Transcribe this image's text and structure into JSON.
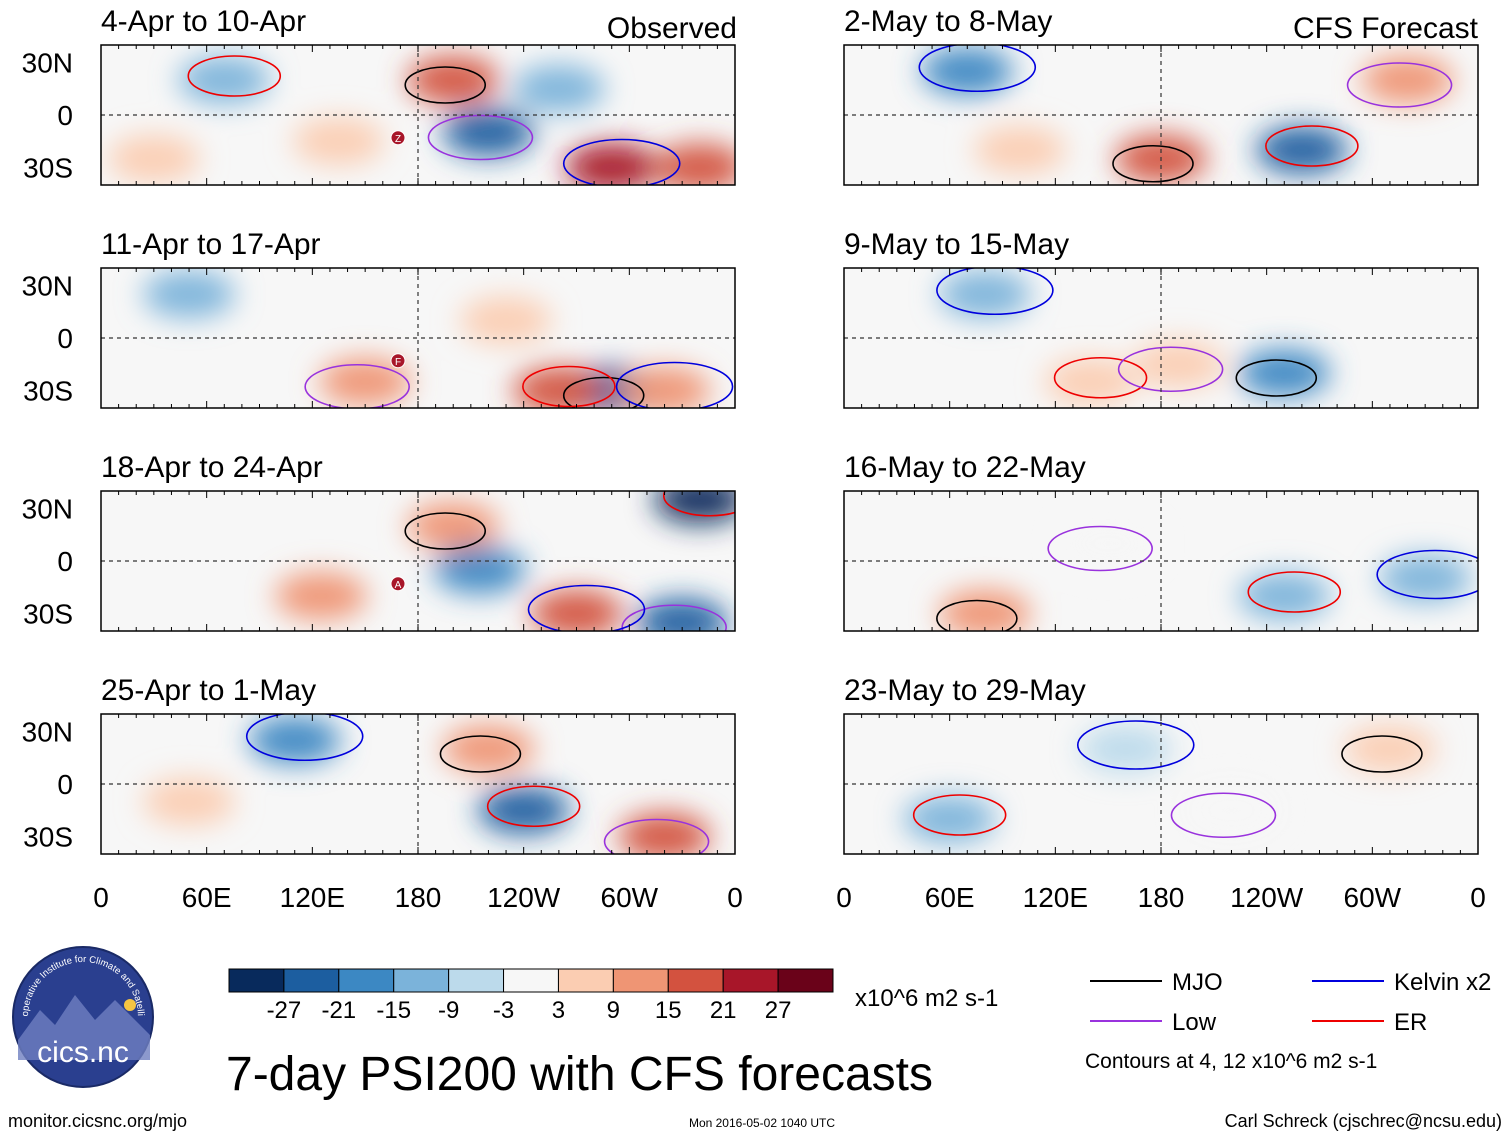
{
  "chart_data": {
    "type": "heatmap",
    "title": "7-day PSI200 with CFS forecasts",
    "field": "PSI200 anomaly",
    "units": "x10^6 m2 s-1",
    "columns": {
      "observed_label": "Observed",
      "forecast_label": "CFS Forecast"
    },
    "x_ticks": [
      "0",
      "60E",
      "120E",
      "180",
      "120W",
      "60W",
      "0"
    ],
    "y_ticks": [
      "30N",
      "0",
      "30S"
    ],
    "colorbar": {
      "labels": [
        "-27",
        "-21",
        "-15",
        "-9",
        "-3",
        "3",
        "9",
        "15",
        "21",
        "27"
      ],
      "colors": [
        "#082a5c",
        "#1c5ea0",
        "#3c88c3",
        "#7bb3da",
        "#bcdaeb",
        "#f7f7f7",
        "#fbcdb2",
        "#ef9574",
        "#d3523f",
        "#a81629",
        "#6a0219"
      ]
    },
    "legend": {
      "entries": [
        {
          "label": "MJO",
          "color": "#000000"
        },
        {
          "label": "Kelvin x2",
          "color": "#0000dd"
        },
        {
          "label": "Low",
          "color": "#9932dd"
        },
        {
          "label": "ER",
          "color": "#ee0000"
        }
      ],
      "note": "Contours at 4, 12 x10^6 m2 s-1"
    },
    "panels": [
      {
        "period": "4-Apr to 10-Apr",
        "column": "Observed",
        "cells": [
          {
            "lon": 200,
            "lat": 20,
            "value": 21
          },
          {
            "lon": 70,
            "lat": 20,
            "value": -9
          },
          {
            "lon": 220,
            "lat": -10,
            "value": -21
          },
          {
            "lon": 290,
            "lat": -30,
            "value": 27
          },
          {
            "lon": 340,
            "lat": -30,
            "value": 21
          },
          {
            "lon": 135,
            "lat": -15,
            "value": 9
          },
          {
            "lon": 260,
            "lat": 15,
            "value": -9
          },
          {
            "lon": 30,
            "lat": -25,
            "value": 9
          }
        ],
        "storm_markers": [
          "Z"
        ]
      },
      {
        "period": "11-Apr to 17-Apr",
        "column": "Observed",
        "cells": [
          {
            "lon": 290,
            "lat": -30,
            "value": -21
          },
          {
            "lon": 260,
            "lat": -30,
            "value": 21
          },
          {
            "lon": 150,
            "lat": -25,
            "value": 15
          },
          {
            "lon": 320,
            "lat": -30,
            "value": 15
          },
          {
            "lon": 230,
            "lat": 10,
            "value": 9
          },
          {
            "lon": 50,
            "lat": 25,
            "value": -9
          }
        ],
        "storm_markers": [
          "F"
        ]
      },
      {
        "period": "18-Apr to 24-Apr",
        "column": "Observed",
        "cells": [
          {
            "lon": 200,
            "lat": 20,
            "value": 15
          },
          {
            "lon": 340,
            "lat": 35,
            "value": -27
          },
          {
            "lon": 330,
            "lat": -35,
            "value": -21
          },
          {
            "lon": 270,
            "lat": -30,
            "value": 21
          },
          {
            "lon": 125,
            "lat": -20,
            "value": 15
          },
          {
            "lon": 215,
            "lat": -5,
            "value": -15
          }
        ],
        "storm_markers": [
          "A"
        ]
      },
      {
        "period": "25-Apr to 1-May",
        "column": "Observed",
        "cells": [
          {
            "lon": 220,
            "lat": 20,
            "value": 15
          },
          {
            "lon": 240,
            "lat": -15,
            "value": -21
          },
          {
            "lon": 320,
            "lat": -30,
            "value": 21
          },
          {
            "lon": 110,
            "lat": 25,
            "value": -15
          },
          {
            "lon": 50,
            "lat": -10,
            "value": 9
          }
        ],
        "storm_markers": []
      },
      {
        "period": "2-May to 8-May",
        "column": "CFS Forecast",
        "cells": [
          {
            "lon": 180,
            "lat": -25,
            "value": 21
          },
          {
            "lon": 260,
            "lat": -20,
            "value": -21
          },
          {
            "lon": 320,
            "lat": 20,
            "value": 15
          },
          {
            "lon": 70,
            "lat": 25,
            "value": -15
          },
          {
            "lon": 100,
            "lat": -20,
            "value": 9
          }
        ],
        "storm_markers": []
      },
      {
        "period": "9-May to 15-May",
        "column": "CFS Forecast",
        "cells": [
          {
            "lon": 250,
            "lat": -20,
            "value": -15
          },
          {
            "lon": 140,
            "lat": -25,
            "value": 9
          },
          {
            "lon": 190,
            "lat": -15,
            "value": 9
          },
          {
            "lon": 80,
            "lat": 25,
            "value": -9
          }
        ],
        "storm_markers": []
      },
      {
        "period": "16-May to 22-May",
        "column": "CFS Forecast",
        "cells": [
          {
            "lon": 80,
            "lat": -30,
            "value": 15
          },
          {
            "lon": 250,
            "lat": -20,
            "value": -9
          },
          {
            "lon": 150,
            "lat": 10,
            "value": 3
          },
          {
            "lon": 330,
            "lat": -10,
            "value": -9
          }
        ],
        "storm_markers": []
      },
      {
        "period": "23-May to 29-May",
        "column": "CFS Forecast",
        "cells": [
          {
            "lon": 310,
            "lat": 20,
            "value": 9
          },
          {
            "lon": 60,
            "lat": -20,
            "value": -9
          },
          {
            "lon": 220,
            "lat": -15,
            "value": 3
          },
          {
            "lon": 160,
            "lat": 20,
            "value": -3
          }
        ],
        "storm_markers": []
      }
    ]
  },
  "logo": {
    "text": "cics.nc",
    "arc_text": "Cooperative Institute for Climate and Satellites"
  },
  "footer": {
    "url": "monitor.cicsnc.org/mjo",
    "timestamp": "Mon 2016-05-02 1040 UTC",
    "author": "Carl Schreck (cjschrec@ncsu.edu)"
  }
}
